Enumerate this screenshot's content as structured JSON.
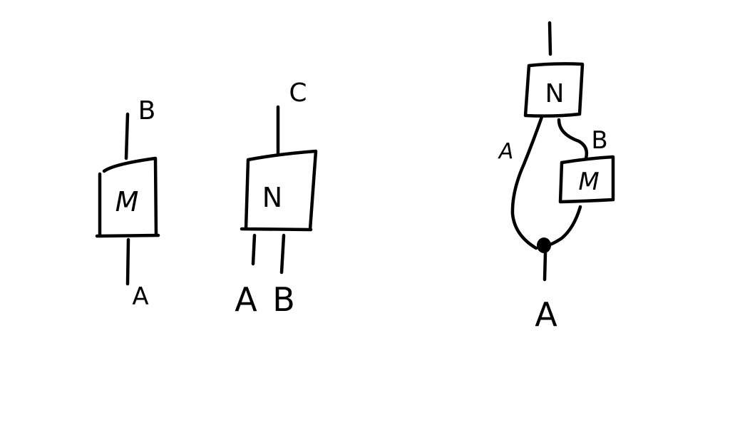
{
  "diagrams": [
    {
      "box": "M",
      "top_wire": "B",
      "bottom_wire": "A"
    },
    {
      "box": "N",
      "top_wire": "C",
      "bottom_wires": [
        "A",
        "B"
      ]
    },
    {
      "top_box": "N",
      "side_box": "M",
      "wire_left": "A",
      "wire_right": "B",
      "bottom_wire": "A"
    }
  ],
  "colors": {
    "ink": "#000000",
    "background": "#ffffff"
  }
}
